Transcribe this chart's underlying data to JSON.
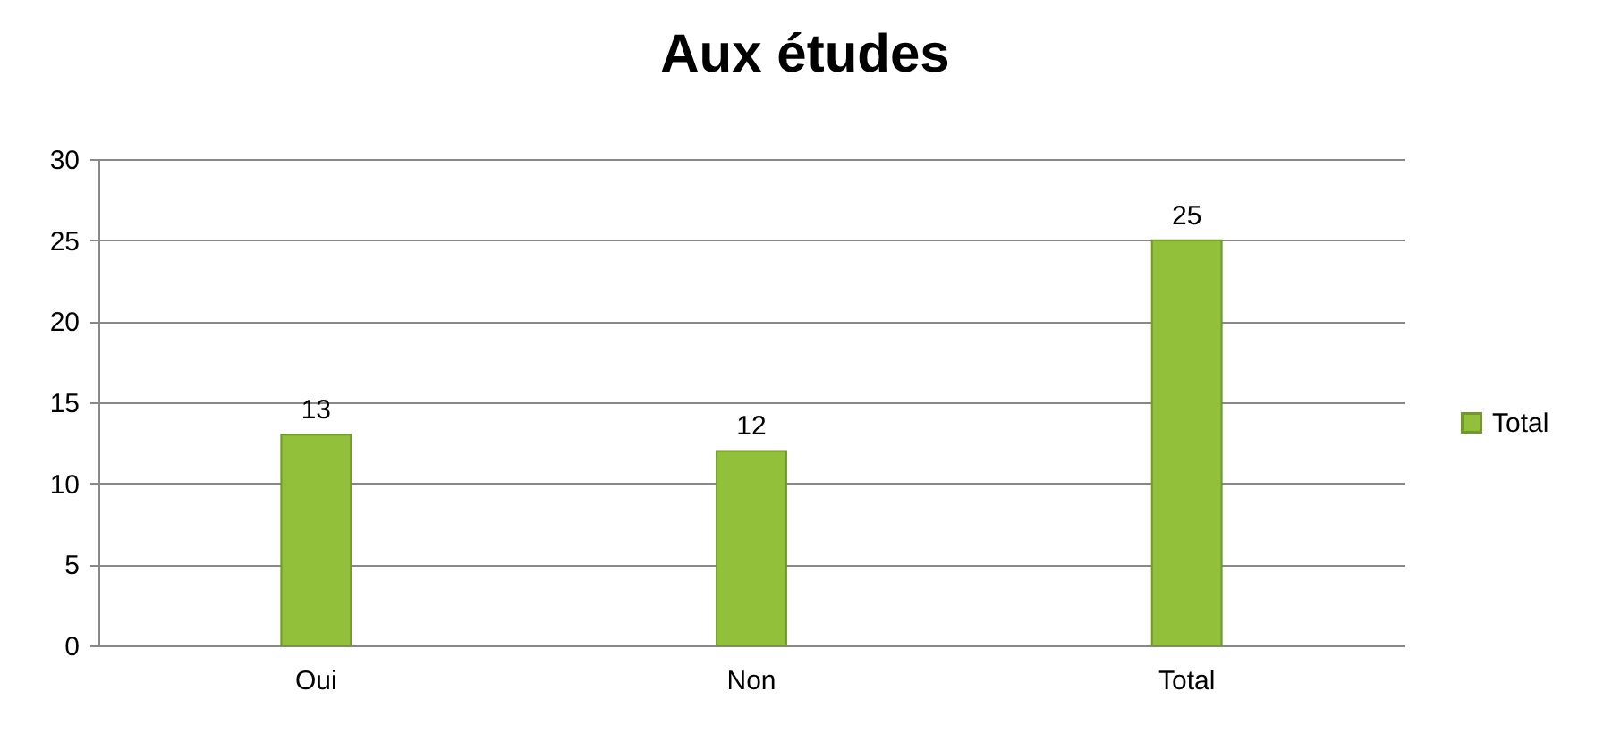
{
  "chart_data": {
    "type": "bar",
    "title": "Aux études",
    "categories": [
      "Oui",
      "Non",
      "Total"
    ],
    "series": [
      {
        "name": "Total",
        "color": "#92c03a",
        "values": [
          13,
          12,
          25
        ]
      }
    ],
    "ylim": [
      0,
      30
    ],
    "yticks": [
      0,
      5,
      10,
      15,
      20,
      25,
      30
    ],
    "grid": "y",
    "legend": "right",
    "data_labels": true
  }
}
